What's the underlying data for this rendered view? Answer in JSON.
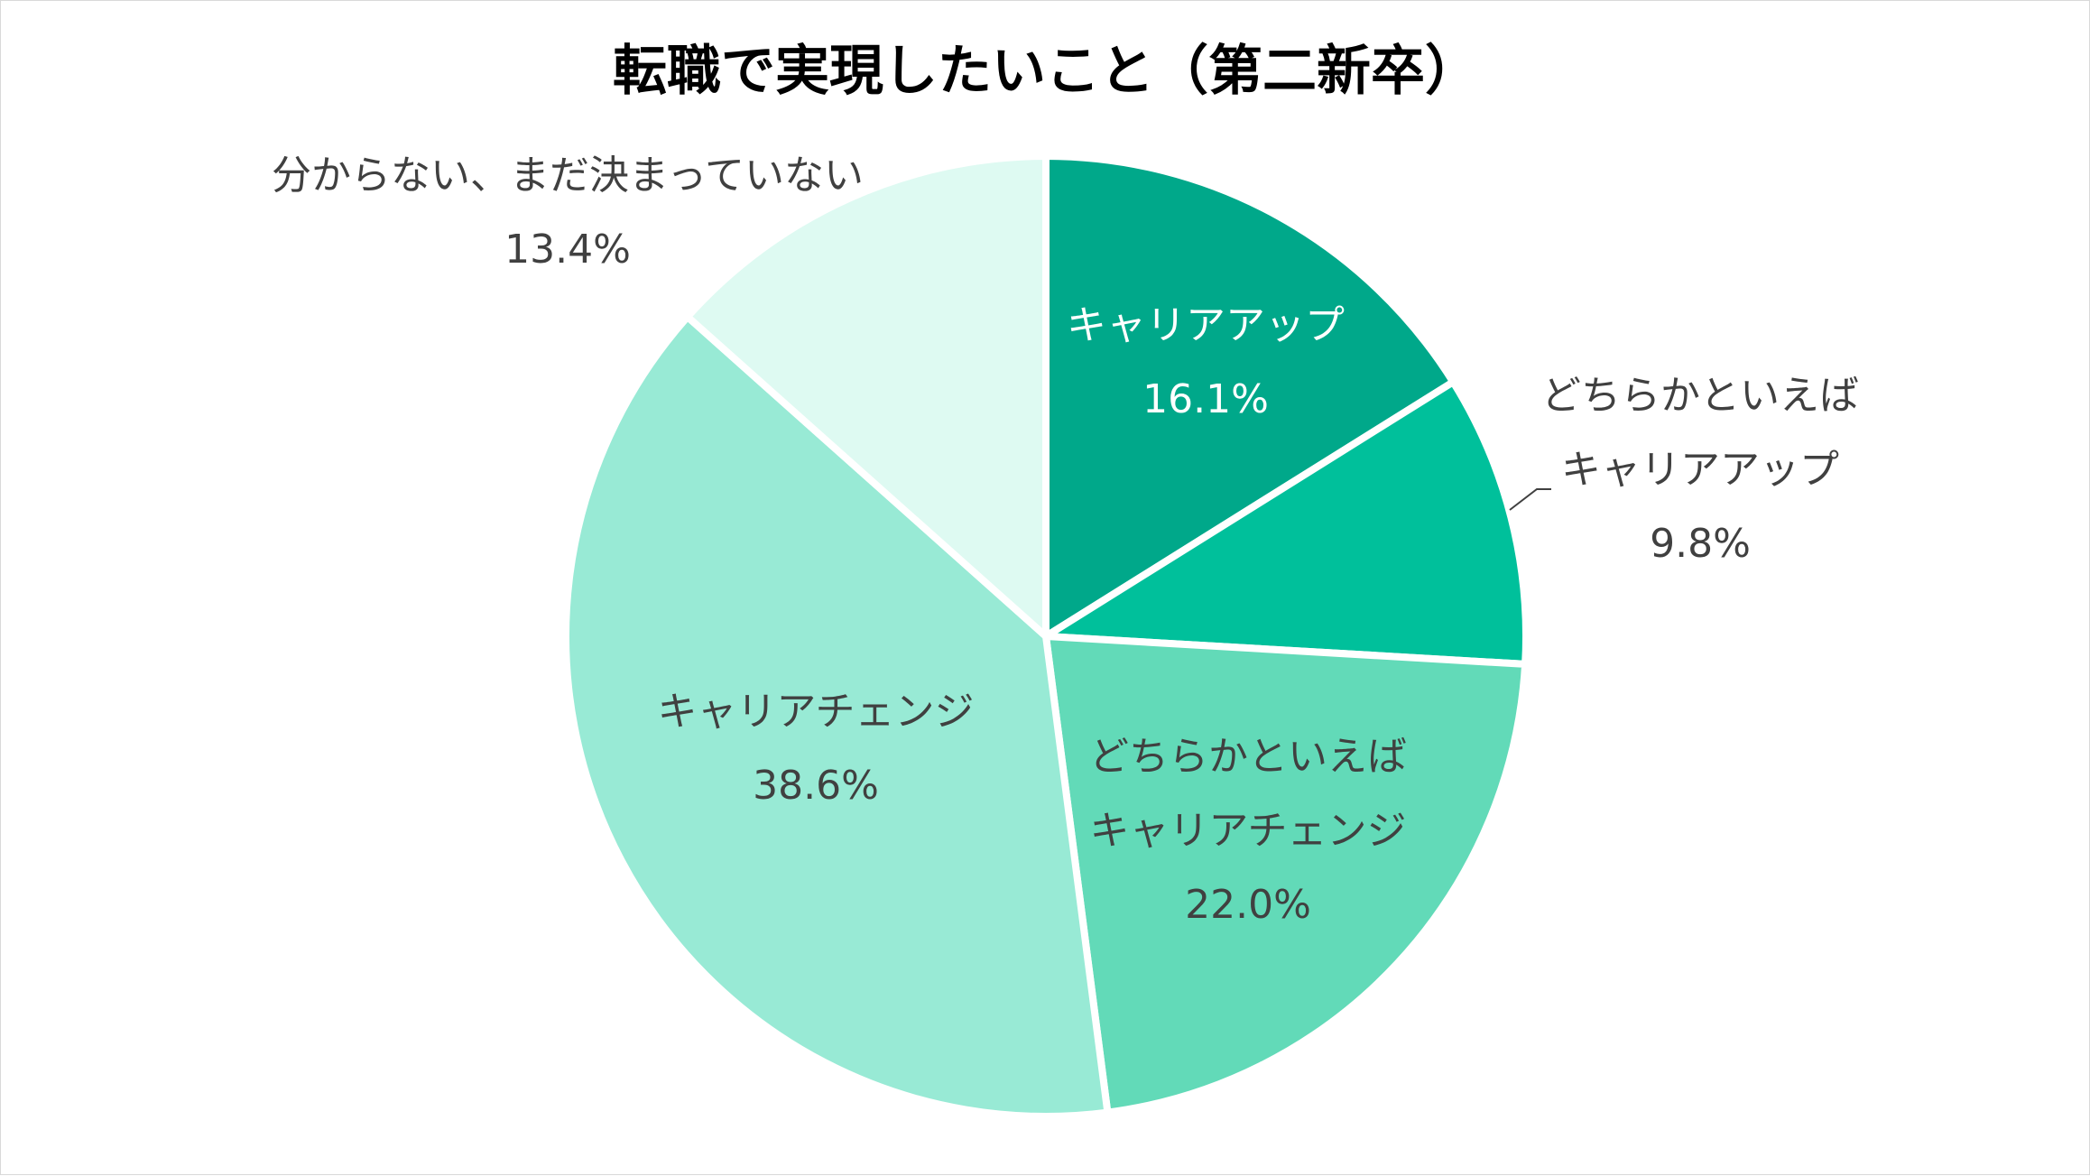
{
  "chart_data": {
    "type": "pie",
    "title": "転職で実現したいこと（第二新卒）",
    "slices": [
      {
        "lines": [
          "キャリアアップ"
        ],
        "value_label": "16.1%",
        "value": 16.1,
        "color": "#00a88a",
        "label_color": "#ffffff"
      },
      {
        "lines": [
          "どちらかといえば",
          "キャリアアップ"
        ],
        "value_label": "9.8%",
        "value": 9.8,
        "color": "#00c09b",
        "label_color": "#404040"
      },
      {
        "lines": [
          "どちらかといえば",
          "キャリアチェンジ"
        ],
        "value_label": "22.0%",
        "value": 22.0,
        "color": "#62dab8",
        "label_color": "#404040"
      },
      {
        "lines": [
          "キャリアチェンジ"
        ],
        "value_label": "38.6%",
        "value": 38.6,
        "color": "#98ead5",
        "label_color": "#404040"
      },
      {
        "lines": [
          "分からない、まだ決まっていない"
        ],
        "value_label": "13.4%",
        "value": 13.4,
        "color": "#defaf2",
        "label_color": "#404040"
      }
    ],
    "start_angle_deg": 0,
    "direction": "clockwise",
    "legend": "none"
  }
}
